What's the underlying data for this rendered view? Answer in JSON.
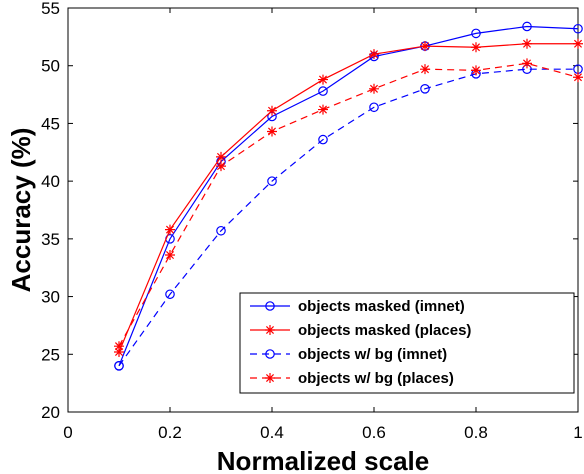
{
  "chart_data": {
    "type": "line",
    "title": "",
    "xlabel": "Normalized scale",
    "ylabel": "Accuracy (%)",
    "xlim": [
      0,
      1
    ],
    "ylim": [
      20,
      55
    ],
    "xticks": [
      0,
      0.2,
      0.4,
      0.6,
      0.8,
      1
    ],
    "xtick_labels": [
      "0",
      "0.2",
      "0.4",
      "0.6",
      "0.8",
      "1"
    ],
    "yticks": [
      20,
      25,
      30,
      35,
      40,
      45,
      50,
      55
    ],
    "ytick_labels": [
      "20",
      "25",
      "30",
      "35",
      "40",
      "45",
      "50",
      "55"
    ],
    "grid": false,
    "legend_position": "bottom-right",
    "x": [
      0.1,
      0.2,
      0.3,
      0.4,
      0.5,
      0.6,
      0.7,
      0.8,
      0.9,
      1.0
    ],
    "series": [
      {
        "name": "objects masked (imnet)",
        "color": "#0000ff",
        "linestyle": "solid",
        "marker": "circle",
        "values": [
          24.0,
          35.0,
          41.7,
          45.6,
          47.8,
          50.8,
          51.7,
          52.8,
          53.4,
          53.2
        ]
      },
      {
        "name": "objects masked (places)",
        "color": "#ff0000",
        "linestyle": "solid",
        "marker": "star",
        "values": [
          25.2,
          35.8,
          42.1,
          46.1,
          48.8,
          51.0,
          51.7,
          51.6,
          51.9,
          51.9
        ]
      },
      {
        "name": "objects w/ bg (imnet)",
        "color": "#0000ff",
        "linestyle": "dashed",
        "marker": "circle",
        "values": [
          24.0,
          30.2,
          35.7,
          40.0,
          43.6,
          46.4,
          48.0,
          49.3,
          49.7,
          49.7
        ]
      },
      {
        "name": "objects w/ bg (places)",
        "color": "#ff0000",
        "linestyle": "dashed",
        "marker": "star",
        "values": [
          25.7,
          33.6,
          41.3,
          44.3,
          46.2,
          48.0,
          49.7,
          49.6,
          50.2,
          49.0
        ]
      }
    ]
  }
}
